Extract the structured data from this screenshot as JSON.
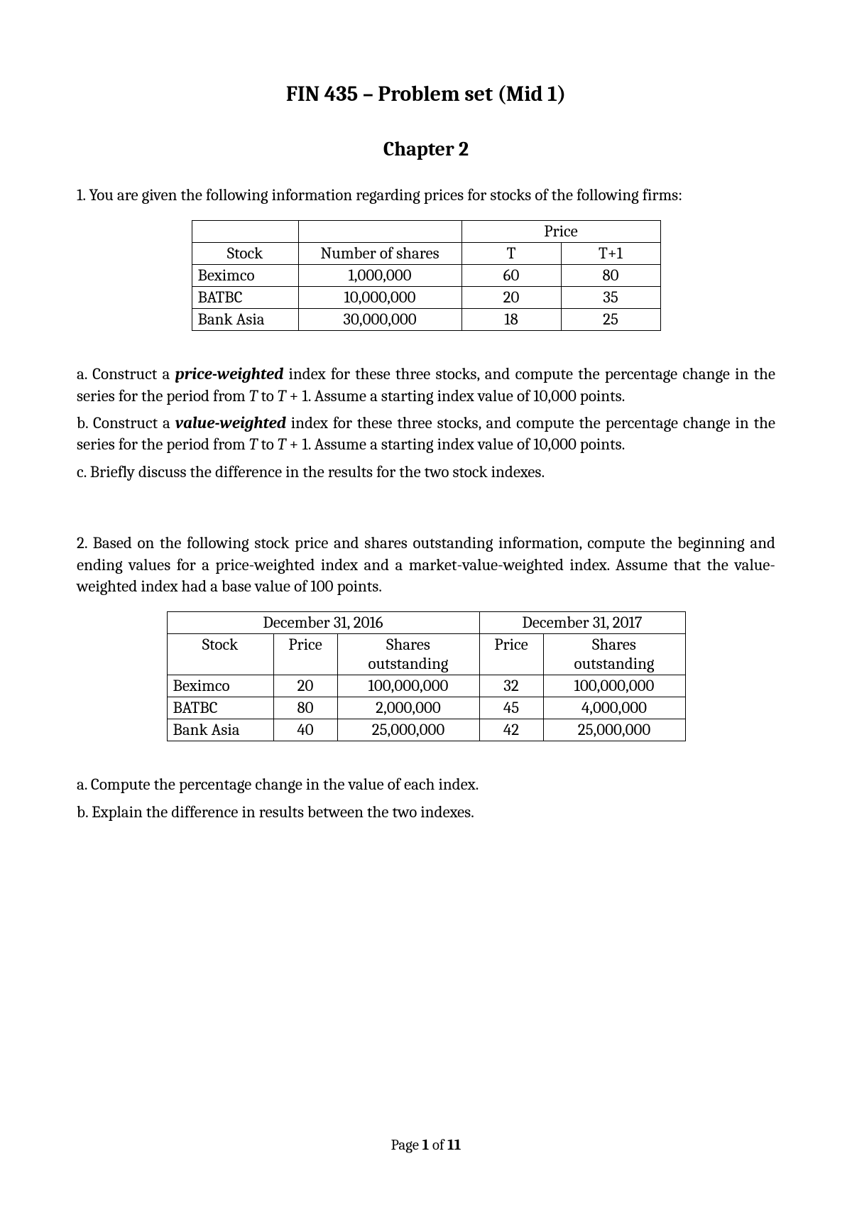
{
  "title": "FIN 435 – Problem set (Mid 1)",
  "chapter": "Chapter 2",
  "q1": {
    "intro": "1. You are given the following information regarding prices for stocks of the following firms:",
    "table": {
      "price_label": "Price",
      "headers": {
        "stock": "Stock",
        "shares": "Number of shares",
        "t": "T",
        "t1": "T+1"
      },
      "rows": [
        {
          "stock": "Beximco",
          "shares": "1,000,000",
          "t": "60",
          "t1": "80"
        },
        {
          "stock": "BATBC",
          "shares": "10,000,000",
          "t": "20",
          "t1": "35"
        },
        {
          "stock": "Bank Asia",
          "shares": "30,000,000",
          "t": "18",
          "t1": "25"
        }
      ]
    },
    "a_pre": "a. Construct a ",
    "a_kw": "price-weighted",
    "a_post1": " index for these three stocks, and compute the percentage change in the series for the period from ",
    "a_T": "T",
    "a_mid": " to ",
    "a_T1": "T",
    "a_post2": " + 1. Assume a starting index value of 10,000 points.",
    "b_pre": "b. Construct a ",
    "b_kw": "value-weighted",
    "b_post1": " index for these three stocks, and compute the percentage change in the series for the period from ",
    "b_T": "T",
    "b_mid": " to ",
    "b_T1": "T",
    "b_post2": " + 1. Assume a starting index value of 10,000 points.",
    "c": "c. Briefly discuss the difference in the results for the two stock indexes."
  },
  "q2": {
    "intro": "2. Based on the following stock price and shares outstanding information, compute the beginning and ending values for a price-weighted index and a market-value-weighted index. Assume that the value-weighted index had a base value of 100 points.",
    "table": {
      "date1": "December 31, 2016",
      "date2": "December 31, 2017",
      "headers": {
        "stock": "Stock",
        "price": "Price",
        "shares_l1": "Shares",
        "shares_l2": "outstanding"
      },
      "rows": [
        {
          "stock": "Beximco",
          "p1": "20",
          "s1": "100,000,000",
          "p2": "32",
          "s2": "100,000,000"
        },
        {
          "stock": "BATBC",
          "p1": "80",
          "s1": "2,000,000",
          "p2": "45",
          "s2": "4,000,000"
        },
        {
          "stock": "Bank Asia",
          "p1": "40",
          "s1": "25,000,000",
          "p2": "42",
          "s2": "25,000,000"
        }
      ]
    },
    "a": "a. Compute the percentage change in the value of each index.",
    "b": "b. Explain the difference in results between the two indexes."
  },
  "footer": {
    "pre": "Page ",
    "n": "1",
    "mid": " of ",
    "total": "11"
  }
}
